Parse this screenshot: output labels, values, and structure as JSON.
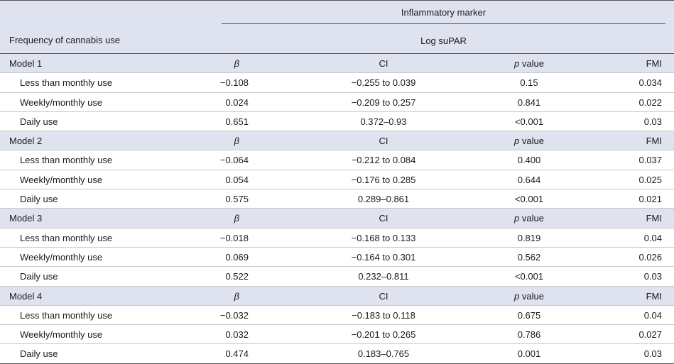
{
  "header": {
    "group_label": "Inflammatory marker",
    "sub_label": "Log suPAR",
    "stub_label": "Frequency of cannabis use"
  },
  "column_labels": {
    "beta": "β",
    "ci": "CI",
    "p_italic": "p",
    "p_rest": " value",
    "fmi": "FMI"
  },
  "models": [
    {
      "name": "Model 1",
      "rows": [
        {
          "label": "Less than monthly use",
          "beta": "−0.108",
          "ci": "−0.255 to 0.039",
          "p": "0.15",
          "fmi": "0.034"
        },
        {
          "label": "Weekly/monthly use",
          "beta": "0.024",
          "ci": "−0.209 to 0.257",
          "p": "0.841",
          "fmi": "0.022"
        },
        {
          "label": "Daily use",
          "beta": "0.651",
          "ci": "0.372–0.93",
          "p": "<0.001",
          "fmi": "0.03"
        }
      ]
    },
    {
      "name": "Model 2",
      "rows": [
        {
          "label": "Less than monthly use",
          "beta": "−0.064",
          "ci": "−0.212 to 0.084",
          "p": "0.400",
          "fmi": "0.037"
        },
        {
          "label": "Weekly/monthly use",
          "beta": "0.054",
          "ci": "−0.176 to 0.285",
          "p": "0.644",
          "fmi": "0.025"
        },
        {
          "label": "Daily use",
          "beta": "0.575",
          "ci": "0.289–0.861",
          "p": "<0.001",
          "fmi": "0.021"
        }
      ]
    },
    {
      "name": "Model 3",
      "rows": [
        {
          "label": "Less than monthly use",
          "beta": "−0.018",
          "ci": "−0.168 to 0.133",
          "p": "0.819",
          "fmi": "0.04"
        },
        {
          "label": "Weekly/monthly use",
          "beta": "0.069",
          "ci": "−0.164 to 0.301",
          "p": "0.562",
          "fmi": "0.026"
        },
        {
          "label": "Daily use",
          "beta": "0.522",
          "ci": "0.232–0.811",
          "p": "<0.001",
          "fmi": "0.03"
        }
      ]
    },
    {
      "name": "Model 4",
      "rows": [
        {
          "label": "Less than monthly use",
          "beta": "−0.032",
          "ci": "−0.183 to 0.118",
          "p": "0.675",
          "fmi": "0.04"
        },
        {
          "label": "Weekly/monthly use",
          "beta": "0.032",
          "ci": "−0.201 to 0.265",
          "p": "0.786",
          "fmi": "0.027"
        },
        {
          "label": "Daily use",
          "beta": "0.474",
          "ci": "0.183–0.765",
          "p": "0.001",
          "fmi": "0.03"
        }
      ]
    }
  ],
  "colors": {
    "header_band": "#dfe3ef",
    "rule": "#555555",
    "row_divider": "#c8c8c8"
  }
}
